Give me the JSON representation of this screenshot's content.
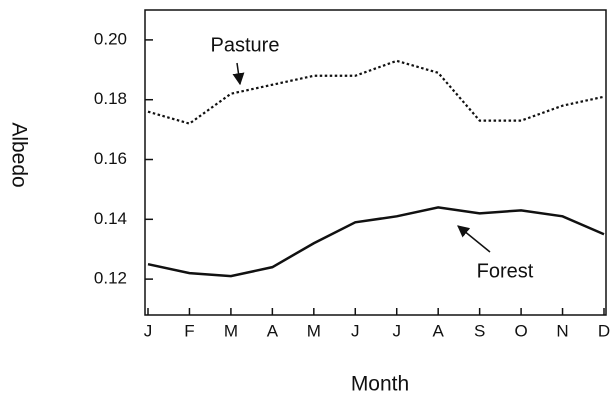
{
  "chart_data": {
    "type": "line",
    "xlabel": "Month",
    "ylabel": "Albedo",
    "categories": [
      "J",
      "F",
      "M",
      "A",
      "M",
      "J",
      "J",
      "A",
      "S",
      "O",
      "N",
      "D"
    ],
    "series": [
      {
        "name": "Pasture",
        "color": "#111111",
        "dash": "dotted",
        "values": [
          0.176,
          0.172,
          0.182,
          0.185,
          0.188,
          0.188,
          0.193,
          0.189,
          0.173,
          0.173,
          0.178,
          0.181
        ]
      },
      {
        "name": "Forest",
        "color": "#111111",
        "dash": "solid",
        "values": [
          0.125,
          0.122,
          0.121,
          0.124,
          0.132,
          0.139,
          0.141,
          0.144,
          0.142,
          0.143,
          0.141,
          0.135
        ]
      }
    ],
    "ylim": [
      0.108,
      0.21
    ],
    "yticks": [
      0.12,
      0.14,
      0.16,
      0.18,
      {
        "value": 0.2,
        "label": "0.20"
      }
    ]
  }
}
